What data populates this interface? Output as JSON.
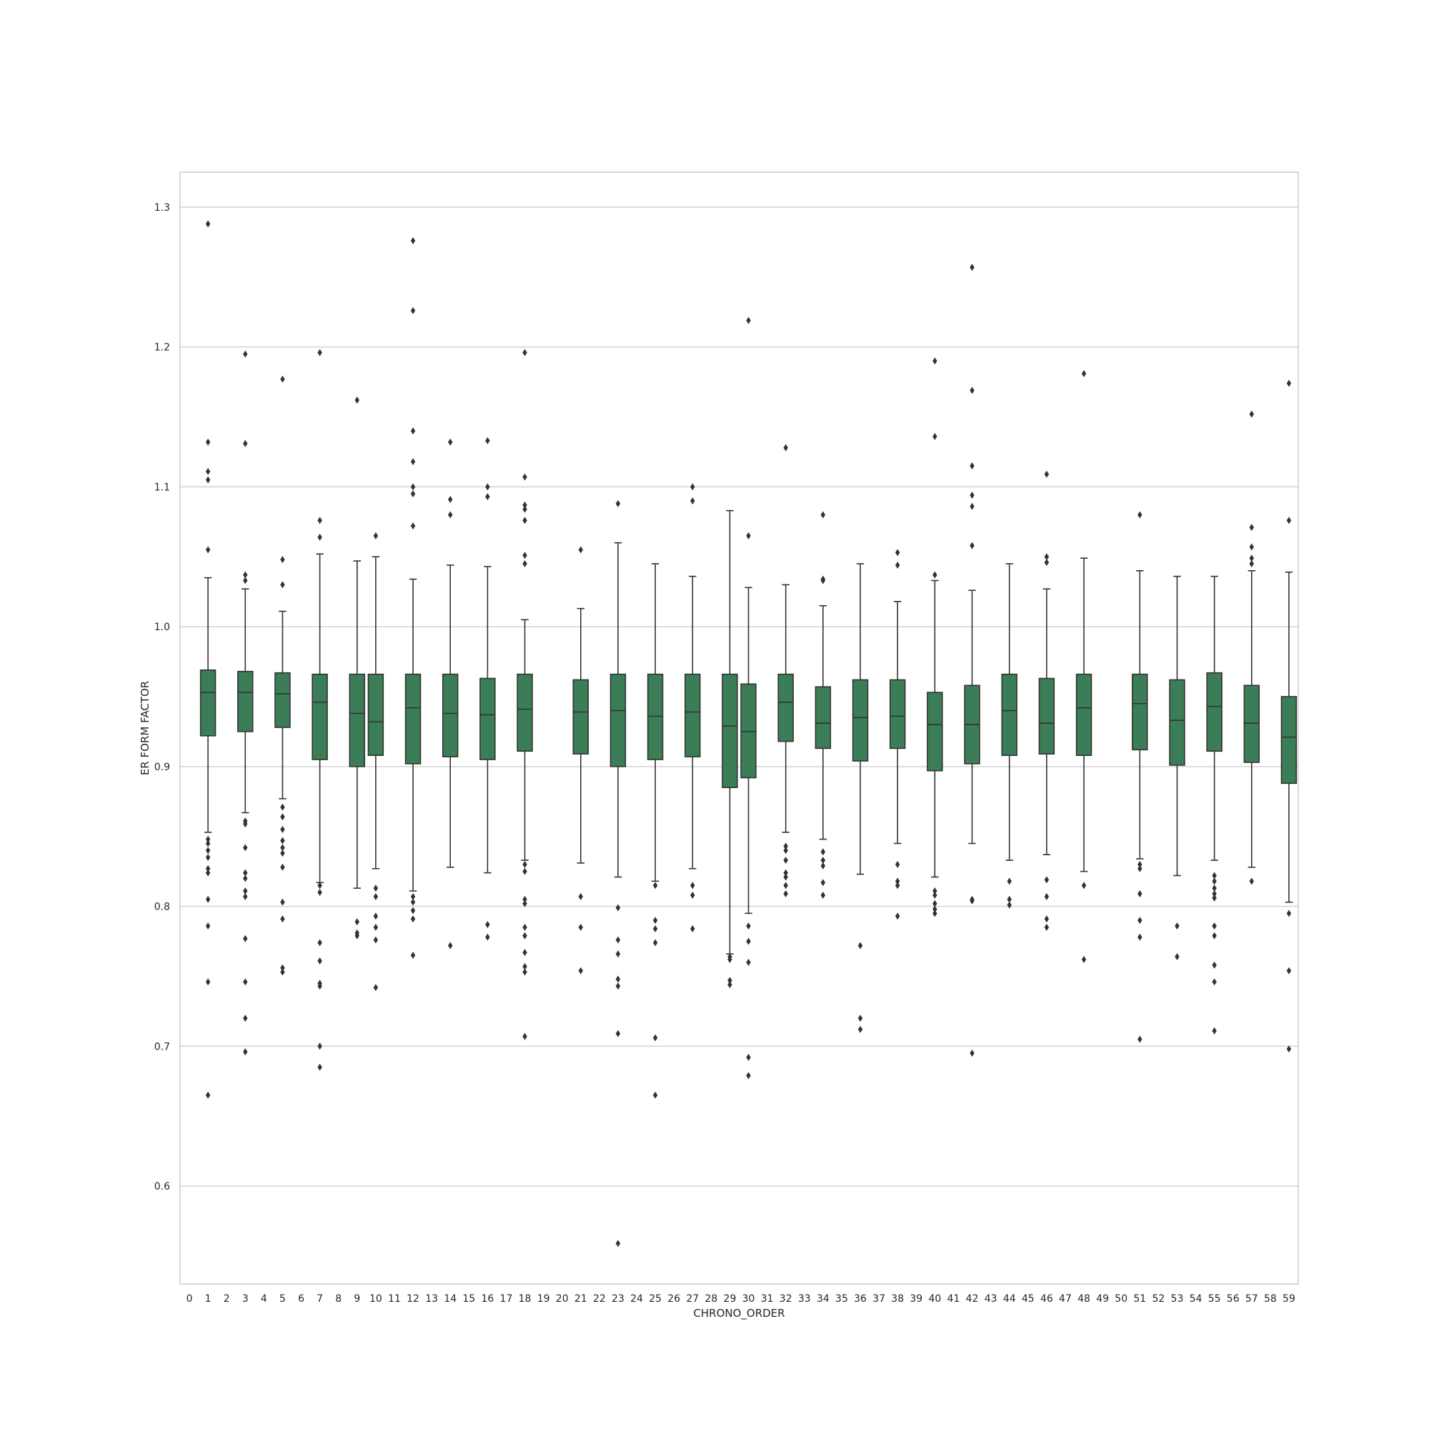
{
  "chart_data": {
    "type": "box",
    "title": "",
    "xlabel": "CHRONO_ORDER",
    "ylabel": "ER FORM FACTOR",
    "ylim": [
      0.53,
      1.325
    ],
    "yticks": [
      "0.6",
      "0.7",
      "0.8",
      "0.9",
      "1.0",
      "1.1",
      "1.2",
      "1.3"
    ],
    "categories": [
      "0",
      "1",
      "2",
      "3",
      "4",
      "5",
      "6",
      "7",
      "8",
      "9",
      "10",
      "11",
      "12",
      "13",
      "14",
      "15",
      "16",
      "17",
      "18",
      "19",
      "20",
      "21",
      "22",
      "23",
      "24",
      "25",
      "26",
      "27",
      "28",
      "29",
      "30",
      "31",
      "32",
      "33",
      "34",
      "35",
      "36",
      "37",
      "38",
      "39",
      "40",
      "41",
      "42",
      "43",
      "44",
      "45",
      "46",
      "47",
      "48",
      "49",
      "50",
      "51",
      "52",
      "53",
      "54",
      "55",
      "56",
      "57",
      "58",
      "59"
    ],
    "grid": "horizontal",
    "colors": {
      "box_fill": "#3a7d57",
      "line": "#333333",
      "grid": "#d3d3d3",
      "frame": "#cccccc"
    },
    "boxes": [
      {
        "category": "1",
        "whislo": 0.853,
        "q1": 0.922,
        "med": 0.953,
        "q3": 0.969,
        "whishi": 1.035,
        "fliers": [
          1.288,
          1.132,
          1.111,
          1.105,
          1.055,
          0.848,
          0.845,
          0.84,
          0.835,
          0.827,
          0.824,
          0.805,
          0.786,
          0.746,
          0.665
        ]
      },
      {
        "category": "3",
        "whislo": 0.867,
        "q1": 0.925,
        "med": 0.953,
        "q3": 0.968,
        "whishi": 1.027,
        "fliers": [
          1.195,
          1.131,
          1.037,
          1.033,
          0.861,
          0.859,
          0.842,
          0.824,
          0.82,
          0.811,
          0.807,
          0.777,
          0.746,
          0.72,
          0.696
        ]
      },
      {
        "category": "5",
        "whislo": 0.877,
        "q1": 0.928,
        "med": 0.952,
        "q3": 0.967,
        "whishi": 1.011,
        "fliers": [
          1.177,
          1.048,
          1.03,
          0.871,
          0.864,
          0.855,
          0.847,
          0.842,
          0.838,
          0.828,
          0.803,
          0.791,
          0.756,
          0.753
        ]
      },
      {
        "category": "7",
        "whislo": 0.817,
        "q1": 0.905,
        "med": 0.946,
        "q3": 0.966,
        "whishi": 1.052,
        "fliers": [
          1.196,
          1.076,
          1.064,
          0.815,
          0.81,
          0.774,
          0.761,
          0.745,
          0.743,
          0.7,
          0.685
        ]
      },
      {
        "category": "9",
        "whislo": 0.813,
        "q1": 0.9,
        "med": 0.938,
        "q3": 0.966,
        "whishi": 1.047,
        "fliers": [
          1.162,
          0.789,
          0.781,
          0.779
        ]
      },
      {
        "category": "10",
        "whislo": 0.827,
        "q1": 0.908,
        "med": 0.932,
        "q3": 0.966,
        "whishi": 1.05,
        "fliers": [
          1.065,
          0.813,
          0.807,
          0.793,
          0.785,
          0.776,
          0.742
        ]
      },
      {
        "category": "12",
        "whislo": 0.811,
        "q1": 0.902,
        "med": 0.942,
        "q3": 0.966,
        "whishi": 1.034,
        "fliers": [
          1.276,
          1.226,
          1.14,
          1.118,
          1.1,
          1.095,
          1.072,
          0.807,
          0.803,
          0.797,
          0.791,
          0.765
        ]
      },
      {
        "category": "14",
        "whislo": 0.828,
        "q1": 0.907,
        "med": 0.938,
        "q3": 0.966,
        "whishi": 1.044,
        "fliers": [
          1.132,
          1.091,
          1.08,
          0.772
        ]
      },
      {
        "category": "16",
        "whislo": 0.824,
        "q1": 0.905,
        "med": 0.937,
        "q3": 0.963,
        "whishi": 1.043,
        "fliers": [
          1.133,
          1.1,
          1.093,
          0.787,
          0.778
        ]
      },
      {
        "category": "18",
        "whislo": 0.833,
        "q1": 0.911,
        "med": 0.941,
        "q3": 0.966,
        "whishi": 1.005,
        "fliers": [
          1.196,
          1.107,
          1.087,
          1.084,
          1.076,
          1.051,
          1.045,
          0.83,
          0.825,
          0.805,
          0.802,
          0.785,
          0.779,
          0.767,
          0.757,
          0.753,
          0.707
        ]
      },
      {
        "category": "21",
        "whislo": 0.831,
        "q1": 0.909,
        "med": 0.939,
        "q3": 0.962,
        "whishi": 1.013,
        "fliers": [
          1.055,
          0.807,
          0.785,
          0.754
        ]
      },
      {
        "category": "23",
        "whislo": 0.821,
        "q1": 0.9,
        "med": 0.94,
        "q3": 0.966,
        "whishi": 1.06,
        "fliers": [
          1.088,
          0.799,
          0.776,
          0.766,
          0.748,
          0.743,
          0.709,
          0.559
        ]
      },
      {
        "category": "25",
        "whislo": 0.818,
        "q1": 0.905,
        "med": 0.936,
        "q3": 0.966,
        "whishi": 1.045,
        "fliers": [
          0.815,
          0.79,
          0.784,
          0.774,
          0.706,
          0.665
        ]
      },
      {
        "category": "27",
        "whislo": 0.827,
        "q1": 0.907,
        "med": 0.939,
        "q3": 0.966,
        "whishi": 1.036,
        "fliers": [
          1.1,
          1.09,
          0.815,
          0.808,
          0.784
        ]
      },
      {
        "category": "29",
        "whislo": 0.766,
        "q1": 0.885,
        "med": 0.929,
        "q3": 0.966,
        "whishi": 1.083,
        "fliers": [
          0.764,
          0.762,
          0.747,
          0.744
        ]
      },
      {
        "category": "30",
        "whislo": 0.795,
        "q1": 0.892,
        "med": 0.925,
        "q3": 0.959,
        "whishi": 1.028,
        "fliers": [
          1.219,
          1.065,
          0.786,
          0.775,
          0.76,
          0.692,
          0.679
        ]
      },
      {
        "category": "32",
        "whislo": 0.853,
        "q1": 0.918,
        "med": 0.946,
        "q3": 0.966,
        "whishi": 1.03,
        "fliers": [
          1.128,
          0.843,
          0.84,
          0.833,
          0.824,
          0.821,
          0.815,
          0.809
        ]
      },
      {
        "category": "34",
        "whislo": 0.848,
        "q1": 0.913,
        "med": 0.931,
        "q3": 0.957,
        "whishi": 1.015,
        "fliers": [
          1.08,
          1.034,
          1.033,
          0.839,
          0.833,
          0.829,
          0.817,
          0.808
        ]
      },
      {
        "category": "36",
        "whislo": 0.823,
        "q1": 0.904,
        "med": 0.935,
        "q3": 0.962,
        "whishi": 1.045,
        "fliers": [
          0.772,
          0.72,
          0.712
        ]
      },
      {
        "category": "38",
        "whislo": 0.845,
        "q1": 0.913,
        "med": 0.936,
        "q3": 0.962,
        "whishi": 1.018,
        "fliers": [
          1.053,
          1.044,
          0.83,
          0.818,
          0.815,
          0.793
        ]
      },
      {
        "category": "40",
        "whislo": 0.821,
        "q1": 0.897,
        "med": 0.93,
        "q3": 0.953,
        "whishi": 1.033,
        "fliers": [
          1.19,
          1.136,
          1.037,
          0.811,
          0.808,
          0.802,
          0.798,
          0.795
        ]
      },
      {
        "category": "42",
        "whislo": 0.845,
        "q1": 0.902,
        "med": 0.93,
        "q3": 0.958,
        "whishi": 1.026,
        "fliers": [
          1.257,
          1.169,
          1.115,
          1.094,
          1.086,
          1.058,
          0.805,
          0.804,
          0.695
        ]
      },
      {
        "category": "44",
        "whislo": 0.833,
        "q1": 0.908,
        "med": 0.94,
        "q3": 0.966,
        "whishi": 1.045,
        "fliers": [
          0.818,
          0.805,
          0.801
        ]
      },
      {
        "category": "46",
        "whislo": 0.837,
        "q1": 0.909,
        "med": 0.931,
        "q3": 0.963,
        "whishi": 1.027,
        "fliers": [
          1.109,
          1.05,
          1.046,
          0.819,
          0.807,
          0.791,
          0.785
        ]
      },
      {
        "category": "48",
        "whislo": 0.825,
        "q1": 0.908,
        "med": 0.942,
        "q3": 0.966,
        "whishi": 1.049,
        "fliers": [
          1.181,
          0.815,
          0.762
        ]
      },
      {
        "category": "51",
        "whislo": 0.834,
        "q1": 0.912,
        "med": 0.945,
        "q3": 0.966,
        "whishi": 1.04,
        "fliers": [
          1.08,
          0.83,
          0.827,
          0.809,
          0.79,
          0.778,
          0.705
        ]
      },
      {
        "category": "53",
        "whislo": 0.822,
        "q1": 0.901,
        "med": 0.933,
        "q3": 0.962,
        "whishi": 1.036,
        "fliers": [
          0.786,
          0.764
        ]
      },
      {
        "category": "55",
        "whislo": 0.833,
        "q1": 0.911,
        "med": 0.943,
        "q3": 0.967,
        "whishi": 1.036,
        "fliers": [
          0.822,
          0.818,
          0.813,
          0.809,
          0.806,
          0.786,
          0.779,
          0.758,
          0.746,
          0.711
        ]
      },
      {
        "category": "57",
        "whislo": 0.828,
        "q1": 0.903,
        "med": 0.931,
        "q3": 0.958,
        "whishi": 1.04,
        "fliers": [
          1.152,
          1.071,
          1.057,
          1.049,
          1.045,
          0.818
        ]
      },
      {
        "category": "59",
        "whislo": 0.803,
        "q1": 0.888,
        "med": 0.921,
        "q3": 0.95,
        "whishi": 1.039,
        "fliers": [
          1.174,
          1.076,
          0.795,
          0.754,
          0.698
        ]
      }
    ]
  }
}
